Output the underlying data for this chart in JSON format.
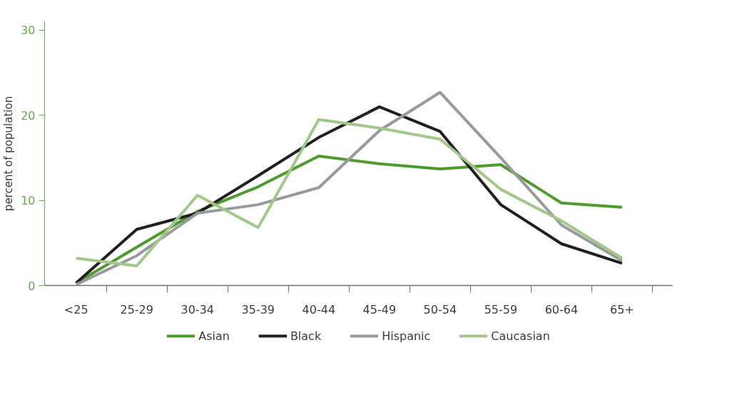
{
  "chart_data": {
    "type": "line",
    "ylabel": "percent of population",
    "categories": [
      "<25",
      "25-29",
      "30-34",
      "35-39",
      "40-44",
      "45-49",
      "50-54",
      "55-59",
      "60-64",
      "65+"
    ],
    "series": [
      {
        "name": "Asian",
        "color": "#4e9a2e",
        "values": [
          0.3,
          4.5,
          8.7,
          11.6,
          15.2,
          14.3,
          13.7,
          14.2,
          9.7,
          9.2
        ]
      },
      {
        "name": "Black",
        "color": "#231f20",
        "values": [
          0.3,
          6.6,
          8.5,
          12.9,
          17.4,
          21.0,
          18.1,
          9.5,
          4.9,
          2.6
        ]
      },
      {
        "name": "Hispanic",
        "color": "#98999d",
        "values": [
          0.1,
          3.5,
          8.5,
          9.5,
          11.5,
          18.2,
          22.7,
          15.0,
          7.1,
          2.9
        ]
      },
      {
        "name": "Caucasian",
        "color": "#a3c68a",
        "values": [
          3.2,
          2.3,
          10.6,
          6.8,
          19.5,
          18.5,
          17.2,
          11.3,
          7.6,
          3.2
        ]
      }
    ],
    "ylim": [
      0,
      31
    ],
    "yticks": [
      0,
      10,
      20,
      30
    ],
    "grid": false,
    "legend": "bottom",
    "marker": "none",
    "line_style": "solid"
  }
}
